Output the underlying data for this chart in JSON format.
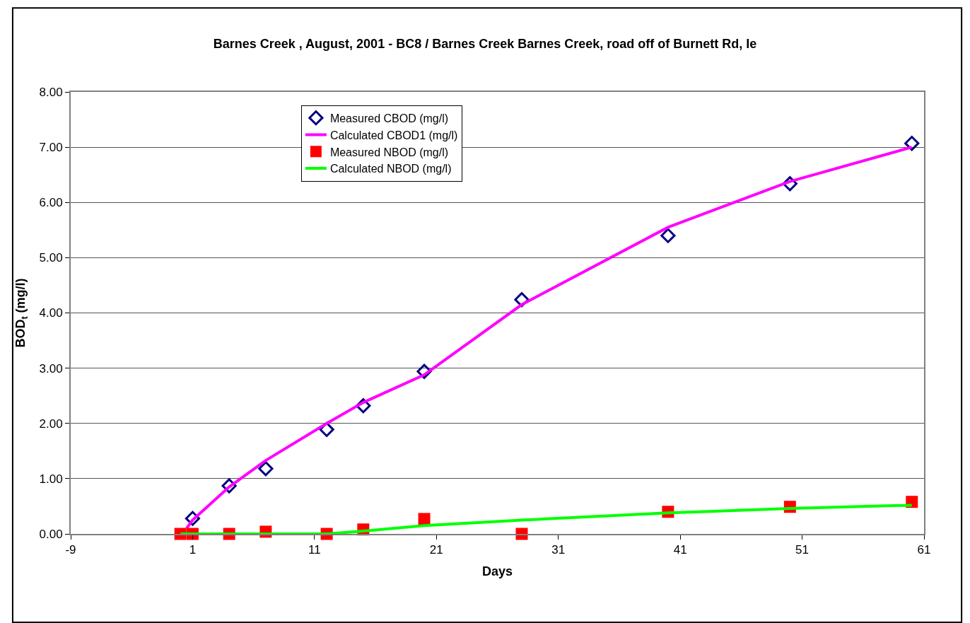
{
  "chart_data": {
    "type": "scatter",
    "title": "Barnes Creek , August, 2001 - BC8 / Barnes Creek Barnes Creek, road off of Burnett Rd, le",
    "xlabel": "Days",
    "ylabel": "BOD$_{t}$ (mg/l)",
    "xlim": [
      -9,
      61
    ],
    "xticks": [
      -9,
      1,
      11,
      21,
      31,
      41,
      51,
      61
    ],
    "ylim": [
      0,
      8
    ],
    "yticks": [
      {
        "value": 0,
        "label": "0.00"
      },
      {
        "value": 1,
        "label": "1.00"
      },
      {
        "value": 2,
        "label": "2.00"
      },
      {
        "value": 3,
        "label": "3.00"
      },
      {
        "value": 4,
        "label": "4.00"
      },
      {
        "value": 5,
        "label": "5.00"
      },
      {
        "value": 6,
        "label": "6.00"
      },
      {
        "value": 7,
        "label": "7.00"
      },
      {
        "value": 8,
        "label": "8.00"
      }
    ],
    "grid": "y",
    "legend": "top left",
    "series": [
      {
        "name": "Measured CBOD (mg/l)",
        "marker": "diamond",
        "color": "#000080",
        "x": [
          1,
          4,
          7,
          12,
          15,
          20,
          28,
          40,
          50,
          60
        ],
        "values": [
          0.28,
          0.87,
          1.18,
          1.89,
          2.32,
          2.94,
          4.24,
          5.4,
          6.34,
          7.07
        ]
      },
      {
        "name": "Calculated CBOD1 (mg/l)",
        "type": "line",
        "marker": "none",
        "color": "#ff00ff",
        "x": [
          0.5,
          1,
          4,
          7,
          12,
          15,
          20,
          28,
          40,
          50,
          60
        ],
        "values": [
          0.1,
          0.25,
          0.85,
          1.33,
          2.0,
          2.38,
          2.88,
          4.15,
          5.55,
          6.38,
          7.0
        ]
      },
      {
        "name": "Measured NBOD (mg/l)",
        "marker": "square",
        "color": "#ff0000",
        "x": [
          0,
          1,
          4,
          7,
          12,
          15,
          20,
          28,
          40,
          50,
          60
        ],
        "values": [
          0,
          0,
          0,
          0.04,
          0,
          0.08,
          0.27,
          0,
          0.4,
          0.49,
          0.58
        ]
      },
      {
        "name": "Calculated NBOD (mg/l)",
        "type": "line",
        "marker": "none",
        "color": "#00ff00",
        "x": [
          0,
          1,
          4,
          7,
          12,
          15,
          20,
          28,
          40,
          50,
          60
        ],
        "values": [
          0,
          0,
          0,
          0,
          0,
          0.05,
          0.15,
          0.25,
          0.38,
          0.46,
          0.52
        ]
      }
    ]
  }
}
